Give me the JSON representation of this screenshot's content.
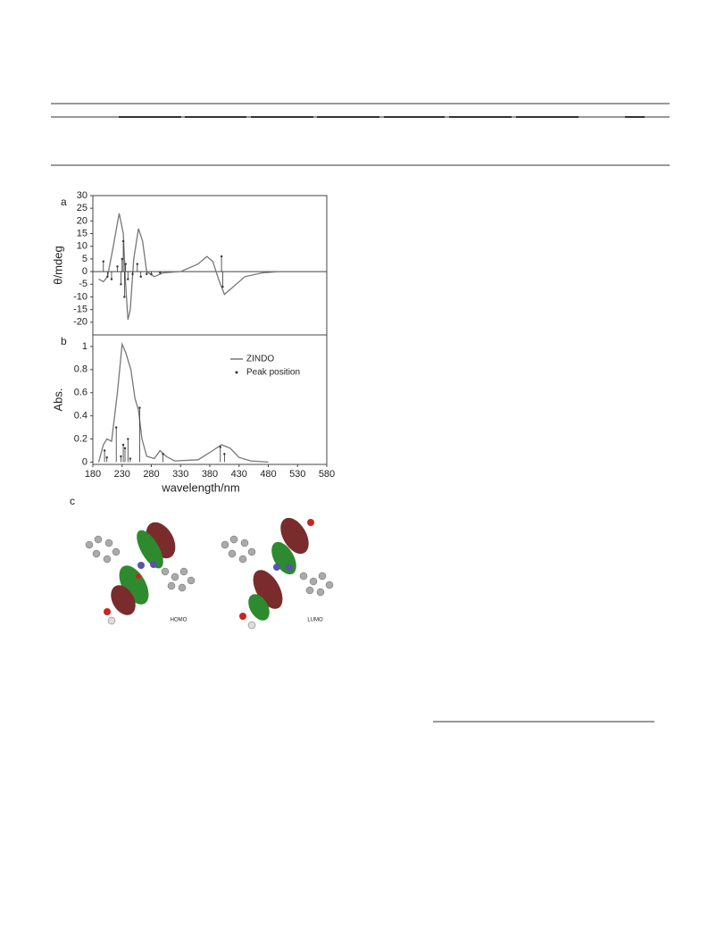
{
  "chart_data": [
    {
      "type": "line",
      "panel": "a",
      "ylabel": "θ/mdeg",
      "xlim": [
        180,
        580
      ],
      "ylim": [
        -25,
        30
      ],
      "yticks": [
        30,
        25,
        20,
        15,
        10,
        5,
        0,
        -5,
        -10,
        -15,
        -20
      ],
      "zero_line": true,
      "series": [
        {
          "kind": "line",
          "color": "#777777",
          "x": [
            190,
            198,
            205,
            215,
            225,
            232,
            236,
            240,
            244,
            250,
            258,
            265,
            272,
            285,
            300,
            330,
            360,
            375,
            385,
            395,
            405,
            420,
            440,
            470,
            500
          ],
          "values": [
            -3,
            -4,
            -2,
            10,
            23,
            15,
            -5,
            -19,
            -15,
            5,
            17,
            12,
            0,
            -2,
            -0.5,
            0,
            3,
            6,
            4,
            -3,
            -9,
            -6,
            -2,
            -0.5,
            0
          ]
        },
        {
          "kind": "stem",
          "color": "#333333",
          "x": [
            198,
            205,
            212,
            222,
            228,
            230,
            232,
            234,
            236,
            240,
            248,
            256,
            262,
            272,
            280,
            295,
            400,
            402
          ],
          "values": [
            4,
            -2,
            -3,
            2,
            -5,
            5,
            12,
            -10,
            3,
            -3,
            -1,
            3,
            -2,
            -1,
            -1,
            -0.5,
            6,
            -6
          ]
        }
      ]
    },
    {
      "type": "line",
      "panel": "b",
      "ylabel": "Abs.",
      "xlabel": "wavelength/nm",
      "xlim": [
        180,
        580
      ],
      "ylim": [
        -0.02,
        1.1
      ],
      "xticks": [
        180,
        230,
        280,
        330,
        380,
        430,
        480,
        530,
        580
      ],
      "yticks": [
        1,
        0.8,
        0.6,
        0.4,
        0.2,
        0
      ],
      "legend": "upper right",
      "series": [
        {
          "name": "ZINDO",
          "kind": "line",
          "color": "#777777",
          "x": [
            190,
            198,
            204,
            212,
            222,
            230,
            236,
            245,
            252,
            258,
            264,
            272,
            285,
            295,
            305,
            320,
            360,
            385,
            400,
            415,
            430,
            450,
            480
          ],
          "values": [
            0,
            0.15,
            0.2,
            0.18,
            0.6,
            1.02,
            0.95,
            0.8,
            0.55,
            0.45,
            0.2,
            0.05,
            0.03,
            0.1,
            0.05,
            0.01,
            0.02,
            0.1,
            0.15,
            0.12,
            0.04,
            0.01,
            0
          ]
        },
        {
          "name": "Peak position",
          "kind": "stem",
          "color": "#333333",
          "x": [
            200,
            204,
            220,
            228,
            232,
            235,
            240,
            244,
            260,
            300,
            398,
            405
          ],
          "values": [
            0.1,
            0.04,
            0.3,
            0.05,
            0.15,
            0.12,
            0.2,
            0.03,
            0.47,
            0.07,
            0.13,
            0.07
          ]
        }
      ]
    }
  ],
  "figure": {
    "panel_c": "c",
    "orbitals": [
      "HOMO",
      "LUMO"
    ]
  }
}
